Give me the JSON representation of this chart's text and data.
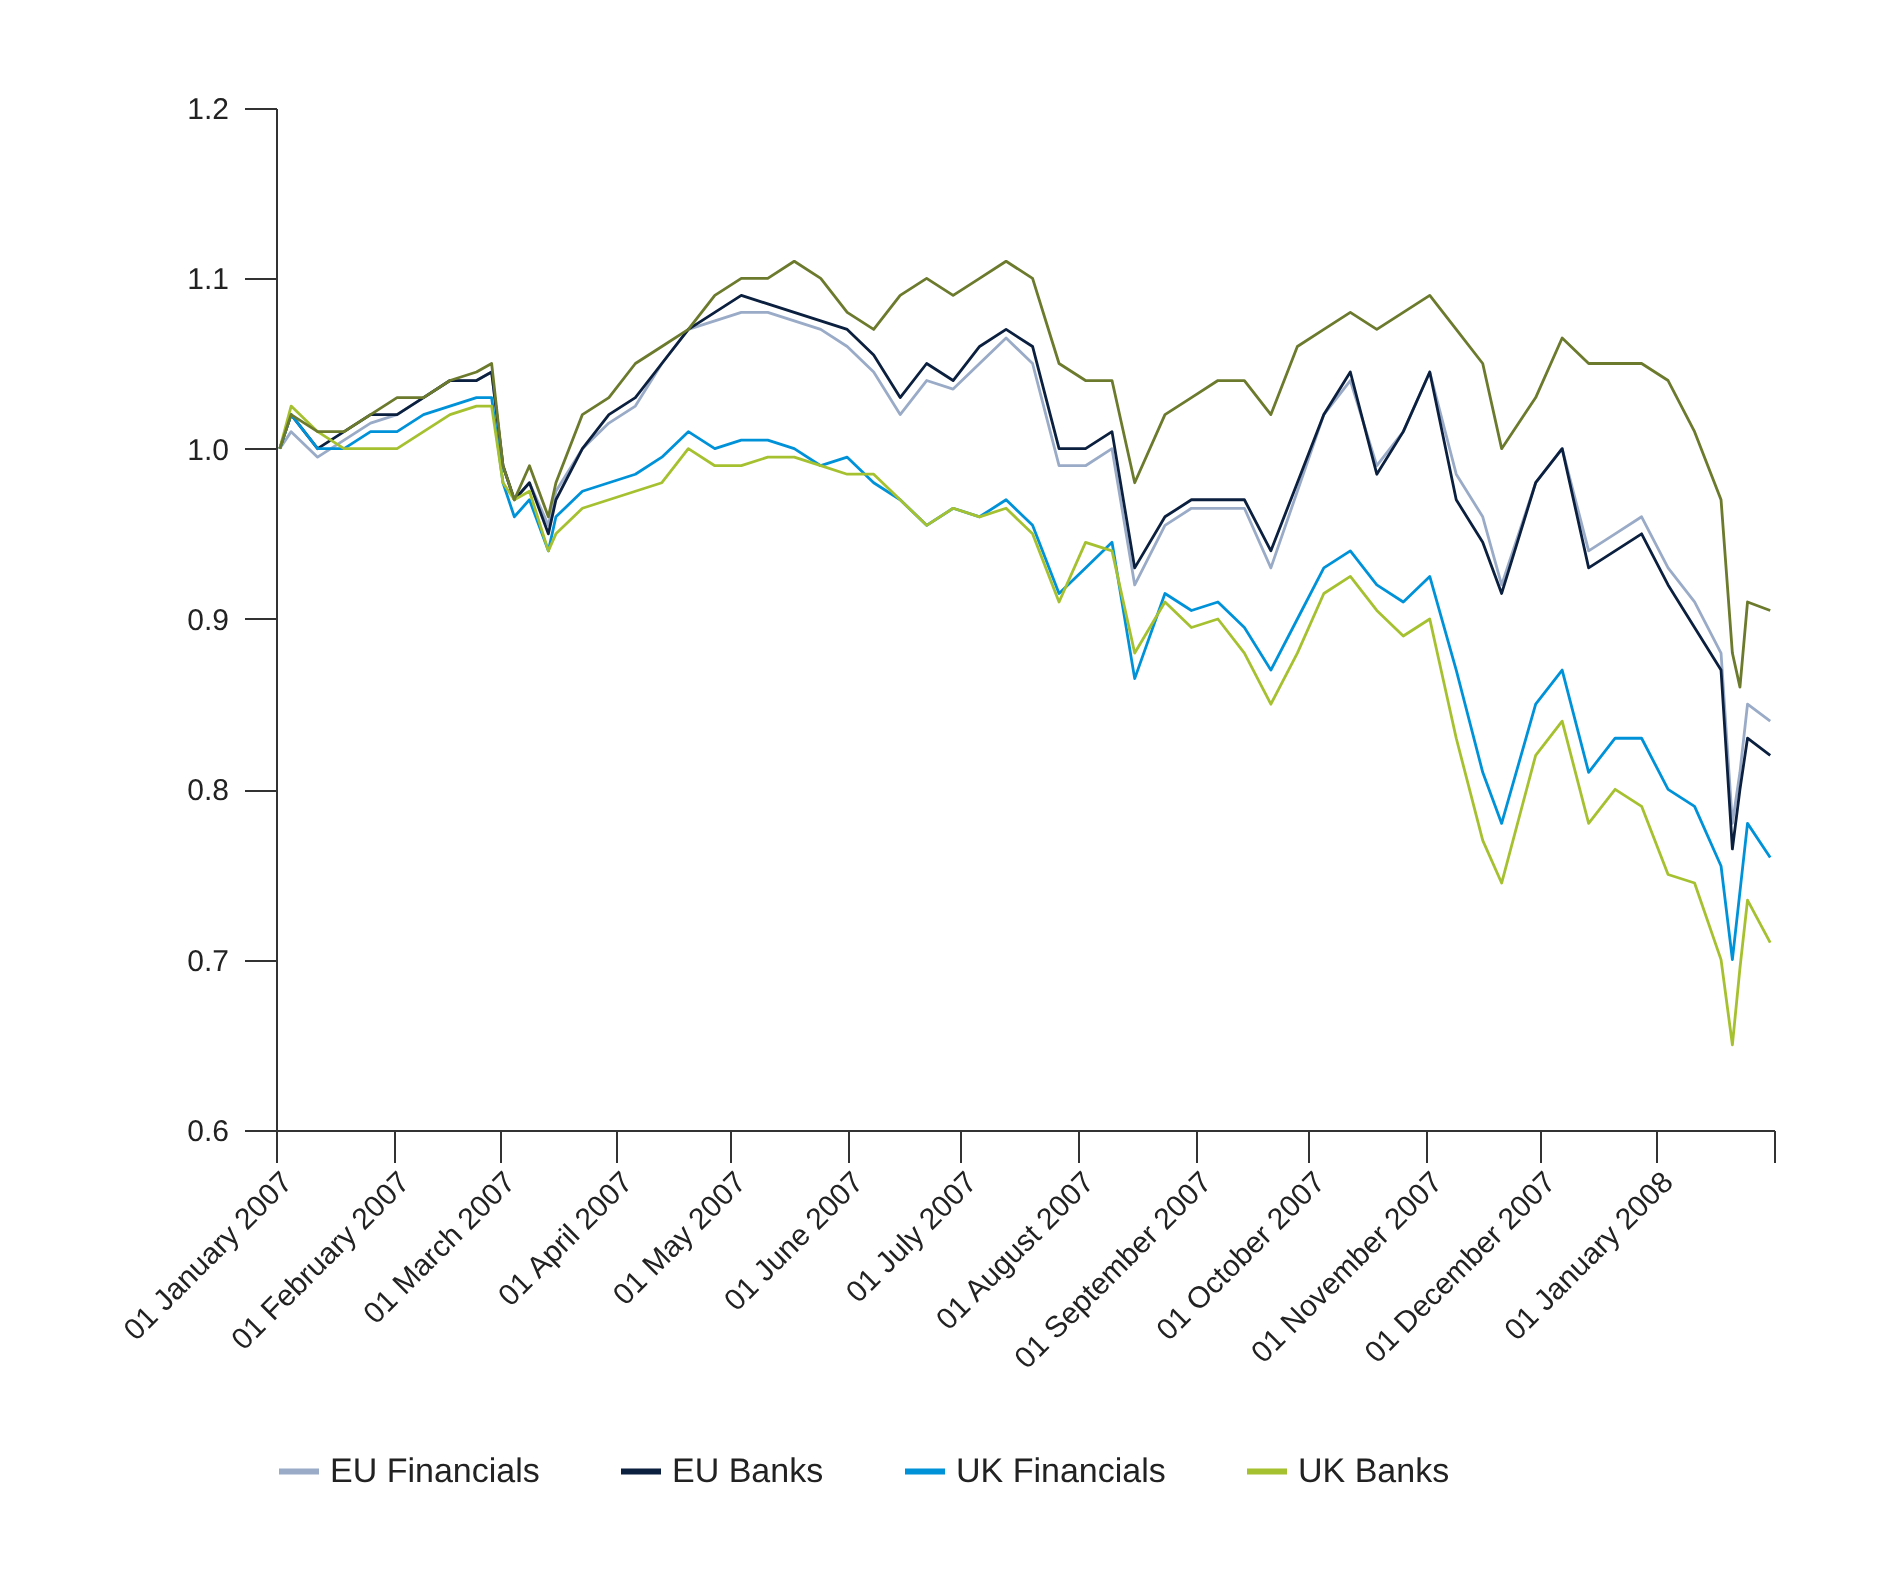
{
  "chart_data": {
    "type": "line",
    "x": [
      "2007-01-02",
      "2007-01-05",
      "2007-01-12",
      "2007-01-19",
      "2007-01-26",
      "2007-02-02",
      "2007-02-09",
      "2007-02-16",
      "2007-02-23",
      "2007-02-27",
      "2007-03-02",
      "2007-03-05",
      "2007-03-09",
      "2007-03-14",
      "2007-03-16",
      "2007-03-23",
      "2007-03-30",
      "2007-04-06",
      "2007-04-13",
      "2007-04-20",
      "2007-04-27",
      "2007-05-04",
      "2007-05-11",
      "2007-05-18",
      "2007-05-25",
      "2007-06-01",
      "2007-06-08",
      "2007-06-15",
      "2007-06-22",
      "2007-06-29",
      "2007-07-06",
      "2007-07-13",
      "2007-07-20",
      "2007-07-27",
      "2007-08-03",
      "2007-08-10",
      "2007-08-16",
      "2007-08-24",
      "2007-08-31",
      "2007-09-07",
      "2007-09-14",
      "2007-09-21",
      "2007-09-28",
      "2007-10-05",
      "2007-10-12",
      "2007-10-19",
      "2007-10-26",
      "2007-11-02",
      "2007-11-09",
      "2007-11-16",
      "2007-11-21",
      "2007-11-30",
      "2007-12-07",
      "2007-12-14",
      "2007-12-21",
      "2007-12-28",
      "2008-01-04",
      "2008-01-11",
      "2008-01-18",
      "2008-01-21",
      "2008-01-23",
      "2008-01-25",
      "2008-01-31"
    ],
    "series": [
      {
        "name": "EU Financials",
        "color": "#9aabc8",
        "values": [
          1.0,
          1.01,
          0.995,
          1.005,
          1.015,
          1.02,
          1.03,
          1.04,
          1.04,
          1.045,
          0.99,
          0.97,
          0.98,
          0.955,
          0.975,
          1.0,
          1.015,
          1.025,
          1.05,
          1.07,
          1.075,
          1.08,
          1.08,
          1.075,
          1.07,
          1.06,
          1.045,
          1.02,
          1.04,
          1.035,
          1.05,
          1.065,
          1.05,
          0.99,
          0.99,
          1.0,
          0.92,
          0.955,
          0.965,
          0.965,
          0.965,
          0.93,
          0.975,
          1.02,
          1.04,
          0.99,
          1.01,
          1.045,
          0.985,
          0.96,
          0.92,
          0.98,
          1.0,
          0.94,
          0.95,
          0.96,
          0.93,
          0.91,
          0.88,
          0.78,
          0.81,
          0.85,
          0.84
        ]
      },
      {
        "name": "EU Banks",
        "color": "#0b1f3f",
        "values": [
          1.0,
          1.02,
          1.0,
          1.01,
          1.02,
          1.02,
          1.03,
          1.04,
          1.04,
          1.045,
          0.99,
          0.97,
          0.98,
          0.95,
          0.97,
          1.0,
          1.02,
          1.03,
          1.05,
          1.07,
          1.08,
          1.09,
          1.085,
          1.08,
          1.075,
          1.07,
          1.055,
          1.03,
          1.05,
          1.04,
          1.06,
          1.07,
          1.06,
          1.0,
          1.0,
          1.01,
          0.93,
          0.96,
          0.97,
          0.97,
          0.97,
          0.94,
          0.98,
          1.02,
          1.045,
          0.985,
          1.01,
          1.045,
          0.97,
          0.945,
          0.915,
          0.98,
          1.0,
          0.93,
          0.94,
          0.95,
          0.92,
          0.895,
          0.87,
          0.765,
          0.8,
          0.83,
          0.82
        ]
      },
      {
        "name": "UK Financials",
        "color": "#0092d8",
        "values": [
          1.0,
          1.02,
          1.0,
          1.0,
          1.01,
          1.01,
          1.02,
          1.025,
          1.03,
          1.03,
          0.98,
          0.96,
          0.97,
          0.94,
          0.96,
          0.975,
          0.98,
          0.985,
          0.995,
          1.01,
          1.0,
          1.005,
          1.005,
          1.0,
          0.99,
          0.995,
          0.98,
          0.97,
          0.955,
          0.965,
          0.96,
          0.97,
          0.955,
          0.915,
          0.93,
          0.945,
          0.865,
          0.915,
          0.905,
          0.91,
          0.895,
          0.87,
          0.9,
          0.93,
          0.94,
          0.92,
          0.91,
          0.925,
          0.87,
          0.81,
          0.78,
          0.85,
          0.87,
          0.81,
          0.83,
          0.83,
          0.8,
          0.79,
          0.755,
          0.7,
          0.74,
          0.78,
          0.76
        ]
      },
      {
        "name": "UK Banks",
        "color": "#a6c130",
        "values": [
          1.0,
          1.025,
          1.01,
          1.0,
          1.0,
          1.0,
          1.01,
          1.02,
          1.025,
          1.025,
          0.98,
          0.97,
          0.975,
          0.94,
          0.95,
          0.965,
          0.97,
          0.975,
          0.98,
          1.0,
          0.99,
          0.99,
          0.995,
          0.995,
          0.99,
          0.985,
          0.985,
          0.97,
          0.955,
          0.965,
          0.96,
          0.965,
          0.95,
          0.91,
          0.945,
          0.94,
          0.88,
          0.91,
          0.895,
          0.9,
          0.88,
          0.85,
          0.88,
          0.915,
          0.925,
          0.905,
          0.89,
          0.9,
          0.83,
          0.77,
          0.745,
          0.82,
          0.84,
          0.78,
          0.8,
          0.79,
          0.75,
          0.745,
          0.7,
          0.65,
          0.695,
          0.735,
          0.71
        ]
      },
      {
        "color": "#6b7a2c",
        "values": [
          1.0,
          1.02,
          1.01,
          1.01,
          1.02,
          1.03,
          1.03,
          1.04,
          1.045,
          1.05,
          0.99,
          0.97,
          0.99,
          0.96,
          0.98,
          1.02,
          1.03,
          1.05,
          1.06,
          1.07,
          1.09,
          1.1,
          1.1,
          1.11,
          1.1,
          1.08,
          1.07,
          1.09,
          1.1,
          1.09,
          1.1,
          1.11,
          1.1,
          1.05,
          1.04,
          1.04,
          0.98,
          1.02,
          1.03,
          1.04,
          1.04,
          1.02,
          1.06,
          1.07,
          1.08,
          1.07,
          1.08,
          1.09,
          1.07,
          1.05,
          1.0,
          1.03,
          1.065,
          1.05,
          1.05,
          1.05,
          1.04,
          1.01,
          0.97,
          0.88,
          0.86,
          0.91,
          0.905
        ]
      }
    ],
    "xlim": [
      "2007-01-01",
      "2008-02-01"
    ],
    "xticks": [
      {
        "value": "2007-01-01",
        "label": "01 January 2007"
      },
      {
        "value": "2007-02-01",
        "label": "01 February 2007"
      },
      {
        "value": "2007-03-01",
        "label": "01 March 2007"
      },
      {
        "value": "2007-04-01",
        "label": "01 April 2007"
      },
      {
        "value": "2007-05-01",
        "label": "01 May 2007"
      },
      {
        "value": "2007-06-01",
        "label": "01 June 2007"
      },
      {
        "value": "2007-07-01",
        "label": "01 July 2007"
      },
      {
        "value": "2007-08-01",
        "label": "01 August 2007"
      },
      {
        "value": "2007-09-01",
        "label": "01 September 2007"
      },
      {
        "value": "2007-10-01",
        "label": "01 October 2007"
      },
      {
        "value": "2007-11-01",
        "label": "01 November 2007"
      },
      {
        "value": "2007-12-01",
        "label": "01 December 2007"
      },
      {
        "value": "2008-01-01",
        "label": "01 January 2008"
      },
      {
        "value": "2008-02-01",
        "label": null
      }
    ],
    "ylim": [
      0.6,
      1.2
    ],
    "yticks": [
      0.6,
      {
        "value": 0.7,
        "label": "0.7"
      },
      0.8,
      0.9,
      {
        "value": 1.0,
        "label": "1.0"
      },
      1.1,
      1.2
    ],
    "grid": false,
    "legend": "bottom",
    "marker": "none",
    "line_style": "solid"
  }
}
